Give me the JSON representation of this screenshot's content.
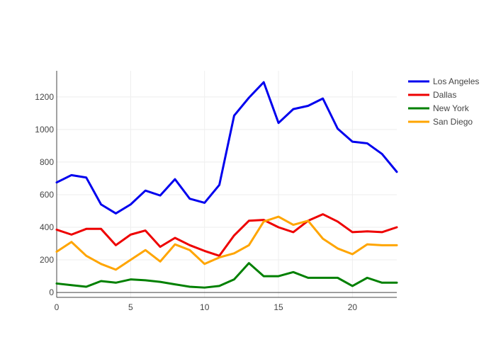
{
  "chart_data": {
    "type": "line",
    "title": "",
    "xlabel": "",
    "ylabel": "",
    "xlim": [
      0,
      23
    ],
    "ylim": [
      -30,
      1360
    ],
    "x_ticks": [
      0,
      5,
      10,
      15,
      20
    ],
    "y_ticks": [
      0,
      200,
      400,
      600,
      800,
      1000,
      1200
    ],
    "grid": true,
    "legend_position": "top-right",
    "x": [
      0,
      1,
      2,
      3,
      4,
      5,
      6,
      7,
      8,
      9,
      10,
      11,
      12,
      13,
      14,
      15,
      16,
      17,
      18,
      19,
      20,
      21,
      22,
      23
    ],
    "series": [
      {
        "name": "Los Angeles",
        "color": "#0000ee",
        "values": [
          675,
          720,
          705,
          540,
          485,
          540,
          625,
          595,
          695,
          575,
          550,
          660,
          1085,
          1195,
          1290,
          1040,
          1125,
          1145,
          1190,
          1005,
          925,
          915,
          850,
          740
        ]
      },
      {
        "name": "Dallas",
        "color": "#ee0000",
        "values": [
          385,
          355,
          390,
          390,
          290,
          355,
          380,
          280,
          335,
          290,
          255,
          225,
          350,
          440,
          445,
          400,
          370,
          440,
          480,
          435,
          370,
          375,
          370,
          400
        ]
      },
      {
        "name": "New York",
        "color": "#008000",
        "values": [
          55,
          45,
          35,
          70,
          60,
          80,
          75,
          65,
          50,
          35,
          30,
          40,
          80,
          180,
          100,
          100,
          125,
          90,
          90,
          90,
          40,
          90,
          60,
          60
        ]
      },
      {
        "name": "San Diego",
        "color": "#ffa500",
        "values": [
          250,
          310,
          225,
          175,
          140,
          200,
          260,
          190,
          295,
          260,
          175,
          215,
          240,
          290,
          435,
          465,
          415,
          440,
          330,
          270,
          235,
          295,
          290,
          290
        ]
      }
    ]
  }
}
